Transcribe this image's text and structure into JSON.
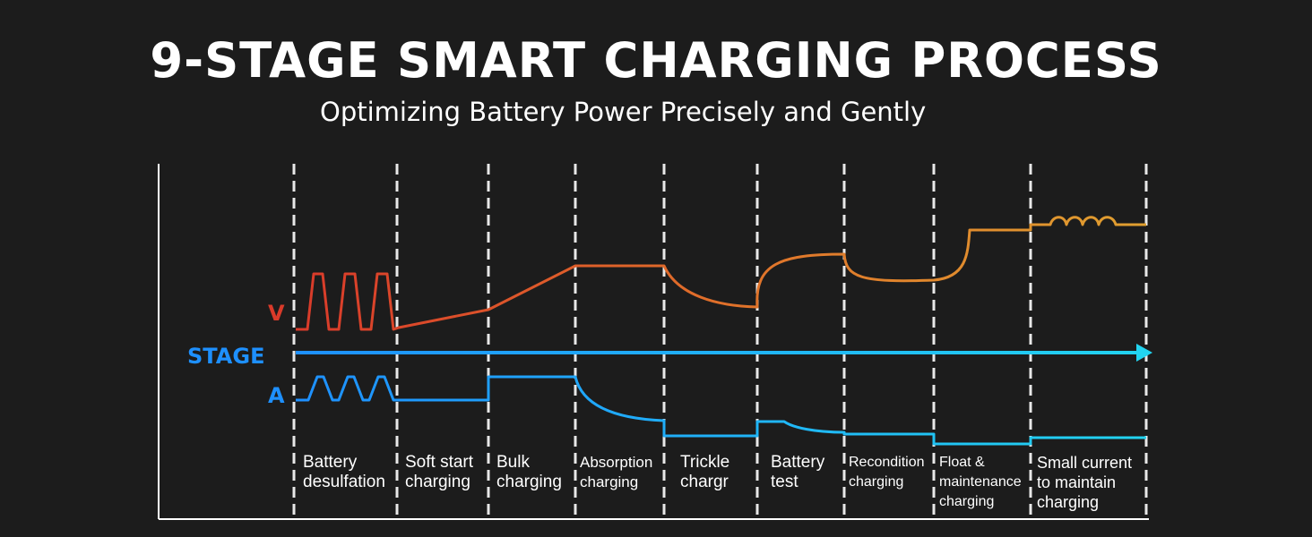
{
  "header": {
    "title": "9-STAGE SMART CHARGING PROCESS",
    "subtitle": "Optimizing Battery Power Precisely and Gently"
  },
  "axes": {
    "voltage": "V",
    "stage": "STAGE",
    "current": "A"
  },
  "stages": [
    {
      "line1": "Battery",
      "line2": "desulfation",
      "line3": ""
    },
    {
      "line1": "Soft start",
      "line2": "charging",
      "line3": ""
    },
    {
      "line1": "Bulk",
      "line2": "charging",
      "line3": ""
    },
    {
      "line1": "Absorption",
      "line2": "charging",
      "line3": ""
    },
    {
      "line1": "Trickle",
      "line2": "chargr",
      "line3": ""
    },
    {
      "line1": "Battery",
      "line2": "test",
      "line3": ""
    },
    {
      "line1": "Recondition",
      "line2": "charging",
      "line3": ""
    },
    {
      "line1": "Float &",
      "line2": "maintenance",
      "line3": "charging"
    },
    {
      "line1": "Small current",
      "line2": "to maintain",
      "line3": "charging"
    }
  ],
  "colors": {
    "background": "#1c1c1c",
    "voltage_start": "#d93a2a",
    "voltage_end": "#e0a030",
    "stage_line_start": "#1e90ff",
    "stage_line_end": "#22d4f0",
    "current_start": "#1e90ff",
    "current_end": "#22d4f0"
  }
}
